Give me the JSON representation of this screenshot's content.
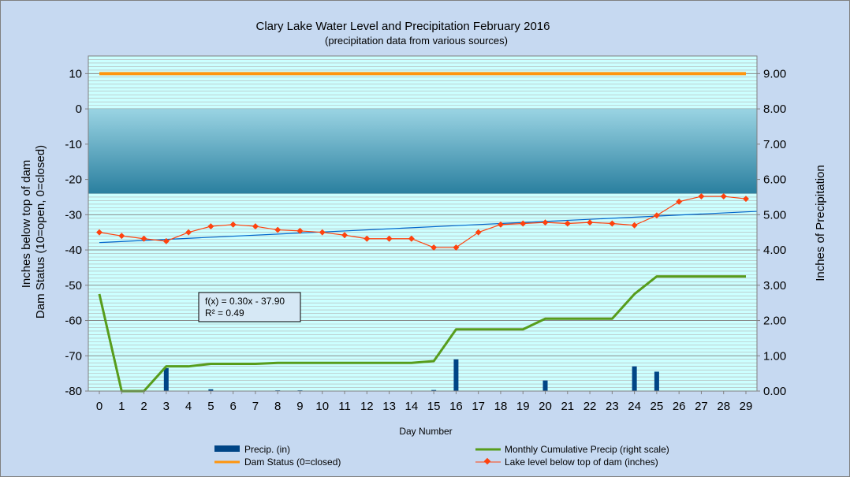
{
  "chart_data": {
    "type": "bar",
    "title": "Clary Lake Water Level and Precipitation February 2016",
    "subtitle": "(precipitation data from various sources)",
    "xlabel": "Day Number",
    "ylabel_left": [
      "Inches  below top of  dam",
      "Dam Status (10=open, 0=closed)"
    ],
    "ylabel_right": "Inches  of  Precipitation",
    "x": [
      0,
      1,
      2,
      3,
      4,
      5,
      6,
      7,
      8,
      9,
      10,
      11,
      12,
      13,
      14,
      15,
      16,
      17,
      18,
      19,
      20,
      21,
      22,
      23,
      24,
      25,
      26,
      27,
      28,
      29
    ],
    "x_tick_labels": [
      "0",
      "1",
      "2",
      "3",
      "4",
      "5",
      "6",
      "7",
      "8",
      "9",
      "10",
      "11",
      "12",
      "13",
      "14",
      "15",
      "16",
      "17",
      "18",
      "19",
      "20",
      "21",
      "22",
      "23",
      "24",
      "25",
      "26",
      "27",
      "28",
      "29"
    ],
    "y_left_lim": [
      -80,
      15
    ],
    "y_left_ticks": [
      "10",
      "0",
      "-10",
      "-20",
      "-30",
      "-40",
      "-50",
      "-60",
      "-70",
      "-80"
    ],
    "y_left_tick_values": [
      10,
      0,
      -10,
      -20,
      -30,
      -40,
      -50,
      -60,
      -70,
      -80
    ],
    "y_right_lim": [
      0,
      9.5
    ],
    "y_right_ticks": [
      "9.00",
      "8.00",
      "7.00",
      "6.00",
      "5.00",
      "4.00",
      "3.00",
      "2.00",
      "1.00",
      "0.00"
    ],
    "y_right_tick_values": [
      9,
      8,
      7,
      6,
      5,
      4,
      3,
      2,
      1,
      0
    ],
    "grid": true,
    "legend_position": "bottom",
    "shaded_band_left": [
      -24,
      0
    ],
    "series": [
      {
        "name": "Precip. (in)",
        "kind": "bar",
        "axis": "right",
        "color": "#004586",
        "values": [
          0,
          0,
          0,
          0.65,
          0,
          0.05,
          0,
          0,
          0.02,
          0.02,
          0,
          0,
          0,
          0,
          0,
          0.03,
          0.9,
          0,
          0,
          0,
          0.3,
          0,
          0,
          0,
          0.7,
          0.55,
          0,
          0,
          0,
          0
        ]
      },
      {
        "name": "Monthly Cumulative Precip (right scale)",
        "kind": "line",
        "axis": "right",
        "color": "#579d1c",
        "values": [
          2.75,
          0,
          0,
          0.7,
          0.7,
          0.77,
          0.77,
          0.77,
          0.8,
          0.8,
          0.8,
          0.8,
          0.8,
          0.8,
          0.8,
          0.85,
          1.75,
          1.75,
          1.75,
          1.75,
          2.05,
          2.05,
          2.05,
          2.05,
          2.75,
          3.25,
          3.25,
          3.25,
          3.25,
          3.25
        ]
      },
      {
        "name": "Dam Status (0=closed)",
        "kind": "line",
        "axis": "left",
        "color": "#ff950e",
        "values": [
          10,
          10,
          10,
          10,
          10,
          10,
          10,
          10,
          10,
          10,
          10,
          10,
          10,
          10,
          10,
          10,
          10,
          10,
          10,
          10,
          10,
          10,
          10,
          10,
          10,
          10,
          10,
          10,
          10,
          10
        ]
      },
      {
        "name": "Lake level below top of dam (inches)",
        "kind": "line-marker",
        "axis": "left",
        "color": "#ff420e",
        "values": [
          -35,
          -36,
          -36.8,
          -37.5,
          -35,
          -33.3,
          -32.8,
          -33.3,
          -34.3,
          -34.6,
          -35,
          -35.8,
          -36.8,
          -36.8,
          -36.8,
          -39.3,
          -39.3,
          -35,
          -32.8,
          -32.5,
          -32.2,
          -32.5,
          -32.2,
          -32.5,
          -33,
          -30.2,
          -26.3,
          -24.8,
          -24.8,
          -25.5
        ]
      }
    ],
    "trendline": {
      "series": "Lake level below top of dam (inches)",
      "slope": 0.3,
      "intercept": -37.9,
      "color": "#0066cc",
      "label_lines": [
        "f(x) = 0.30x - 37.90",
        "R² = 0.49"
      ]
    }
  },
  "colors": {
    "background": "#c6d9f1",
    "plot_background": "#ccffff",
    "grid_line": "#b3b3b3",
    "band_top": "#9ad4e3",
    "band_bottom": "#2a7f9f",
    "annotation_box": "#d6e8f5"
  }
}
